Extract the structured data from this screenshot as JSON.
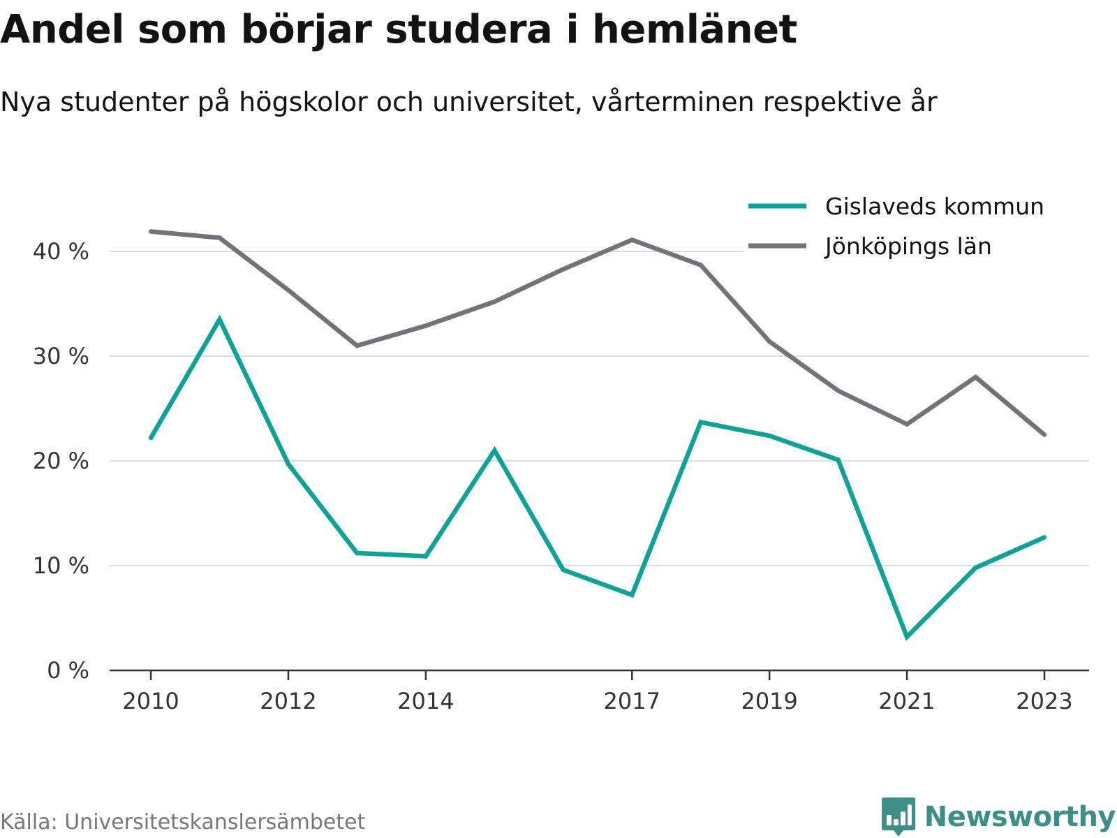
{
  "title": "Andel som börjar studera i hemlänet",
  "subtitle": "Nya studenter på högskolor och universitet, vårterminen respektive år",
  "source": "Källa: Universitetskanslersämbetet",
  "brand": {
    "name": "Newsworthy",
    "icon": "bar-chart-speech-bubble-icon",
    "color": "#3a8f86"
  },
  "chart_data": {
    "type": "line",
    "x": [
      2010,
      2011,
      2012,
      2013,
      2014,
      2015,
      2016,
      2017,
      2018,
      2019,
      2020,
      2021,
      2022,
      2023
    ],
    "x_tick_values": [
      2010,
      2012,
      2014,
      2017,
      2019,
      2021,
      2023
    ],
    "x_tick_labels": [
      "2010",
      "2012",
      "2014",
      "2017",
      "2019",
      "2021",
      "2023"
    ],
    "xlim": [
      2009.4,
      2023.65
    ],
    "ylim": [
      0,
      40
    ],
    "y_tick_values": [
      0,
      10,
      20,
      30,
      40
    ],
    "y_tick_labels": [
      "0 %",
      "10 %",
      "20 %",
      "30 %",
      "40 %"
    ],
    "grid": true,
    "legend_position": "top-right",
    "series": [
      {
        "name": "Gislaveds kommun",
        "color": "#0aa496",
        "values": [
          22.2,
          33.5,
          19.7,
          11.2,
          10.9,
          21.0,
          9.6,
          7.2,
          23.7,
          22.4,
          20.1,
          3.2,
          9.8,
          12.7
        ]
      },
      {
        "name": "Jönköpings län",
        "color": "#737278",
        "values": [
          41.9,
          41.3,
          36.3,
          31.0,
          32.9,
          35.2,
          38.3,
          41.1,
          38.7,
          31.4,
          26.7,
          23.5,
          28.0,
          22.5
        ]
      }
    ]
  }
}
